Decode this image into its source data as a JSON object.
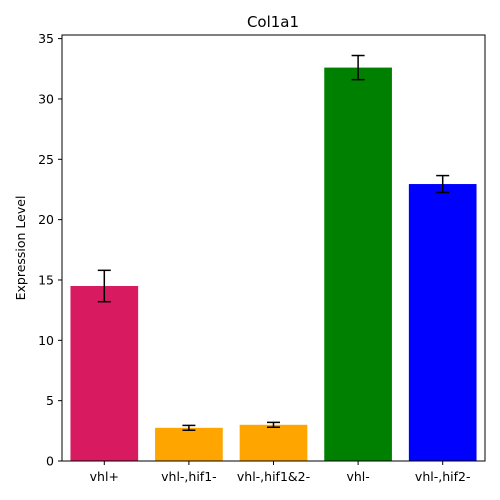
{
  "chart_data": {
    "type": "bar",
    "title": "Col1a1",
    "xlabel": "",
    "ylabel": "Expression Level",
    "categories": [
      "vhl+",
      "vhl-,hif1-",
      "vhl-,hif1&2-",
      "vhl-",
      "vhl-,hif2-"
    ],
    "values": [
      14.5,
      2.75,
      3.0,
      32.6,
      22.95
    ],
    "errors": [
      1.3,
      0.2,
      0.2,
      1.0,
      0.7
    ],
    "colors": [
      "#d81b60",
      "#ffa500",
      "#ffa500",
      "#008000",
      "#0000ff"
    ],
    "ylim": [
      0,
      35.3
    ],
    "yticks": [
      0,
      5,
      10,
      15,
      20,
      25,
      30,
      35
    ],
    "grid": false
  }
}
